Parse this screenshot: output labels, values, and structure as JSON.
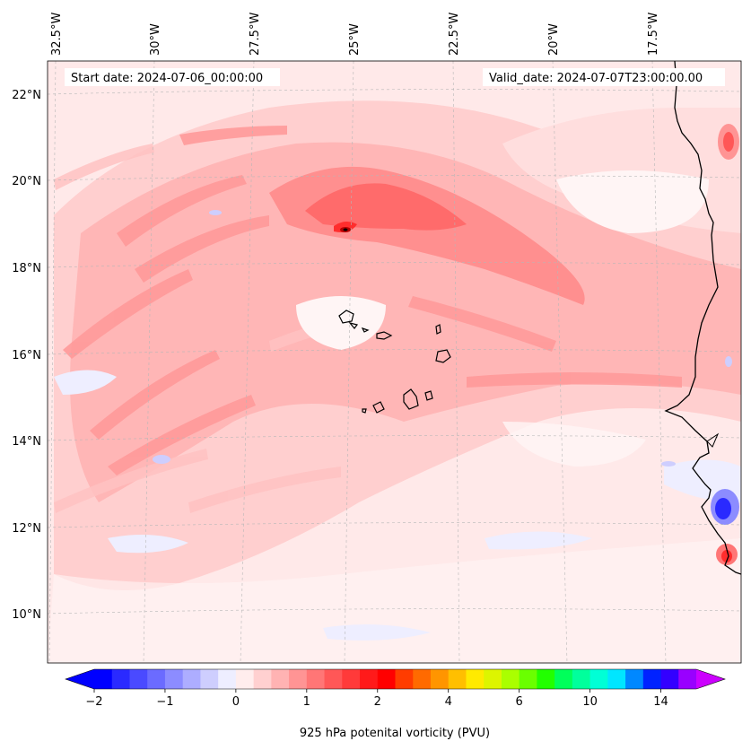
{
  "map": {
    "start_date_text": "Start date: 2024-07-06_00:00:00",
    "valid_date_text": "Valid_date: 2024-07-07T23:00:00.00",
    "lon_labels": [
      "32.5°W",
      "30°W",
      "27.5°W",
      "25°W",
      "22.5°W",
      "20°W",
      "17.5°W"
    ],
    "lat_labels": [
      "22°N",
      "20°N",
      "18°N",
      "16°N",
      "14°N",
      "12°N",
      "10°N"
    ],
    "features": [
      "pv-field-shading",
      "west-africa-coastline",
      "cape-verde-islands",
      "graticule"
    ],
    "colors": {
      "background_field": "#ffe8e8",
      "coast": "#000000",
      "grid": "#bbbbbb"
    }
  },
  "colorbar": {
    "label": "925 hPa potenital vorticity (PVU)",
    "ticks": [
      {
        "value": -2,
        "text": "−2"
      },
      {
        "value": -1,
        "text": "−1"
      },
      {
        "value": 0,
        "text": "0"
      },
      {
        "value": 1,
        "text": "1"
      },
      {
        "value": 2,
        "text": "2"
      },
      {
        "value": 4,
        "text": "4"
      },
      {
        "value": 6,
        "text": "6"
      },
      {
        "value": 10,
        "text": "10"
      },
      {
        "value": 14,
        "text": "14"
      }
    ],
    "colors": [
      "#0000ff",
      "#2a2aff",
      "#4a4aff",
      "#6b6bff",
      "#8c8cff",
      "#adadff",
      "#cecefe",
      "#eeeeff",
      "#ffeded",
      "#ffd0d0",
      "#ffb3b3",
      "#ff9494",
      "#ff7676",
      "#ff5757",
      "#ff3a3a",
      "#ff1a1a",
      "#ff0000",
      "#ff3c00",
      "#ff6a00",
      "#ff9500",
      "#ffbf00",
      "#ffea00",
      "#ddf500",
      "#aaff00",
      "#6aff00",
      "#22ff00",
      "#00ff5a",
      "#00ff9c",
      "#00ffd6",
      "#00e6ff",
      "#0088ff",
      "#0022ff",
      "#3300ff",
      "#9900ff"
    ],
    "under_color": "#0000ff",
    "over_color": "#cc00ff"
  }
}
